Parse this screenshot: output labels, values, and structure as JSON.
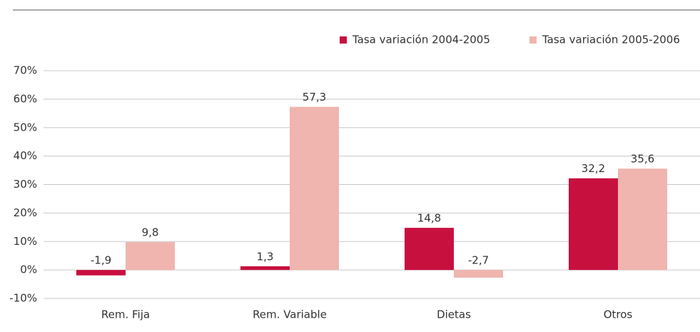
{
  "chart_data": {
    "type": "bar",
    "categories": [
      "Rem. Fija",
      "Rem. Variable",
      "Dietas",
      "Otros"
    ],
    "series": [
      {
        "name": "Tasa variación 2004-2005",
        "color": "#c8103f",
        "values": [
          -1.9,
          1.3,
          14.8,
          32.2
        ],
        "value_labels": [
          "-1,9",
          "1,3",
          "14,8",
          "32,2"
        ]
      },
      {
        "name": "Tasa variación 2005-2006",
        "color": "#efb5ae",
        "values": [
          9.8,
          57.3,
          -2.7,
          35.6
        ],
        "value_labels": [
          "9,8",
          "57,3",
          "-2,7",
          "35,6"
        ]
      }
    ],
    "ylim": [
      -10,
      70
    ],
    "yticks": [
      {
        "value": -10,
        "label": "-10%"
      },
      {
        "value": 0,
        "label": "0%"
      },
      {
        "value": 10,
        "label": "10%"
      },
      {
        "value": 20,
        "label": "20%"
      },
      {
        "value": 30,
        "label": "30%"
      },
      {
        "value": 40,
        "label": "40%"
      },
      {
        "value": 50,
        "label": "50%"
      },
      {
        "value": 60,
        "label": "60%"
      },
      {
        "value": 70,
        "label": "70%"
      }
    ],
    "grid": true,
    "legend": "top-right"
  }
}
